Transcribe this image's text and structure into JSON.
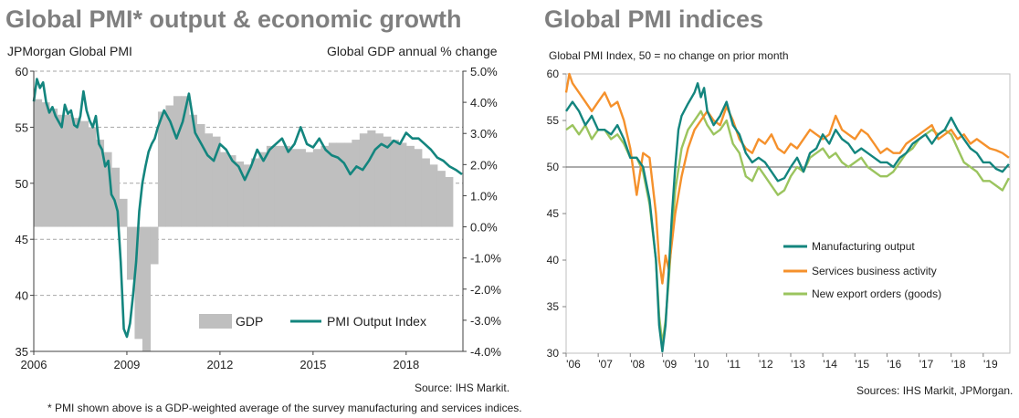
{
  "left_panel": {
    "title": "Global PMI* output & economic growth",
    "left_axis_title": "JPMorgan Global PMI",
    "right_axis_title": "Global  GDP annual % change",
    "source": "Source: IHS Markit.",
    "footnote": "* PMI shown above is a GDP-weighted average of the survey manufacturing and services indices."
  },
  "right_panel": {
    "title": "Global PMI indices",
    "subtitle": "Global PMI Index, 50 = no change on prior month",
    "source": "Sources: IHS Markit, JPMorgan."
  },
  "colors": {
    "teal": "#13857e",
    "orange": "#f5912c",
    "green": "#9bc45e",
    "gdp_gray": "#bfbfbf",
    "grid": "#a6a6a6"
  },
  "chart_data": [
    {
      "type": "bar",
      "legend_position": "bottom-right",
      "x_ticks": [
        "2006",
        "2009",
        "2012",
        "2015",
        "2018"
      ],
      "x_range": [
        2006.0,
        2019.83
      ],
      "y_left": {
        "range": [
          35,
          60
        ],
        "ticks": [
          "35",
          "40",
          "45",
          "50",
          "55",
          "60"
        ]
      },
      "y_right": {
        "range": [
          -4,
          5
        ],
        "ticks": [
          "-4.0%",
          "-3.0%",
          "-2.0%",
          "-1.0%",
          "0.0%",
          "1.0%",
          "2.0%",
          "3.0%",
          "4.0%",
          "5.0%"
        ]
      },
      "series": [
        {
          "name": "GDP",
          "axis": "right",
          "step": 0.25,
          "x_start": 2006.0,
          "values": [
            4.1,
            4.0,
            3.8,
            3.6,
            3.6,
            3.5,
            3.4,
            3.2,
            2.8,
            2.4,
            1.9,
            0.9,
            -1.7,
            -3.6,
            -4.0,
            -1.2,
            3.7,
            3.9,
            4.2,
            4.2,
            3.6,
            3.3,
            3.0,
            2.9,
            2.4,
            2.3,
            2.1,
            2.0,
            2.2,
            2.4,
            2.6,
            2.6,
            2.6,
            2.5,
            2.5,
            2.4,
            2.5,
            2.6,
            2.7,
            2.7,
            2.7,
            2.8,
            3.0,
            3.1,
            3.0,
            2.9,
            2.8,
            2.7,
            2.6,
            2.5,
            2.2,
            2.0,
            1.8,
            1.6
          ]
        },
        {
          "name": "PMI Output Index",
          "axis": "left",
          "x": [
            2006.0,
            2006.1,
            2006.2,
            2006.3,
            2006.4,
            2006.5,
            2006.6,
            2006.7,
            2006.8,
            2006.9,
            2007.0,
            2007.1,
            2007.2,
            2007.3,
            2007.4,
            2007.5,
            2007.6,
            2007.7,
            2007.8,
            2007.9,
            2008.0,
            2008.1,
            2008.2,
            2008.3,
            2008.4,
            2008.5,
            2008.6,
            2008.7,
            2008.8,
            2008.9,
            2009.0,
            2009.1,
            2009.2,
            2009.3,
            2009.4,
            2009.5,
            2009.6,
            2009.7,
            2009.8,
            2009.9,
            2010.0,
            2010.2,
            2010.4,
            2010.6,
            2010.8,
            2011.0,
            2011.2,
            2011.4,
            2011.6,
            2011.8,
            2012.0,
            2012.2,
            2012.4,
            2012.6,
            2012.8,
            2013.0,
            2013.2,
            2013.4,
            2013.6,
            2013.8,
            2014.0,
            2014.2,
            2014.4,
            2014.6,
            2014.8,
            2015.0,
            2015.2,
            2015.4,
            2015.6,
            2015.8,
            2016.0,
            2016.2,
            2016.4,
            2016.6,
            2016.8,
            2017.0,
            2017.2,
            2017.4,
            2017.6,
            2017.8,
            2018.0,
            2018.2,
            2018.4,
            2018.6,
            2018.8,
            2019.0,
            2019.2,
            2019.4,
            2019.6,
            2019.8
          ],
          "values": [
            57.3,
            59.3,
            58.5,
            59.0,
            57.2,
            56.3,
            56.8,
            56.0,
            55.5,
            55.0,
            57.0,
            56.2,
            56.5,
            55.2,
            55.0,
            56.0,
            58.2,
            56.5,
            55.6,
            55.0,
            56.0,
            53.5,
            53.0,
            51.5,
            52.0,
            49.0,
            48.5,
            47.5,
            43.0,
            37.0,
            36.3,
            37.5,
            40.0,
            43.0,
            47.5,
            50.0,
            51.5,
            52.8,
            53.5,
            54.0,
            55.0,
            56.5,
            55.5,
            54.0,
            55.5,
            58.0,
            54.5,
            53.5,
            52.5,
            52.0,
            53.5,
            53.0,
            52.0,
            51.5,
            50.3,
            51.5,
            53.0,
            52.0,
            53.0,
            53.5,
            54.0,
            52.8,
            53.5,
            55.0,
            53.5,
            53.2,
            54.0,
            53.0,
            52.5,
            52.3,
            51.8,
            50.8,
            51.5,
            51.2,
            52.0,
            53.0,
            53.5,
            53.2,
            53.8,
            53.5,
            54.5,
            54.0,
            54.0,
            53.5,
            53.0,
            52.3,
            52.0,
            51.5,
            51.2,
            50.8
          ]
        }
      ]
    },
    {
      "type": "line",
      "legend_position": "bottom-center",
      "x_ticks": [
        "'06",
        "'07",
        "'08",
        "'09",
        "'10",
        "'11",
        "'12",
        "'13",
        "'14",
        "'15",
        "'16",
        "'17",
        "'18",
        "'19"
      ],
      "x_range": [
        2006.0,
        2019.83
      ],
      "y_range": [
        30,
        60
      ],
      "y_ticks": [
        "30",
        "35",
        "40",
        "45",
        "50",
        "55",
        "60"
      ],
      "series": [
        {
          "name": "Manufacturing output",
          "x": [
            2006.0,
            2006.2,
            2006.4,
            2006.6,
            2006.8,
            2007.0,
            2007.2,
            2007.4,
            2007.6,
            2007.8,
            2008.0,
            2008.2,
            2008.4,
            2008.6,
            2008.8,
            2008.9,
            2009.0,
            2009.1,
            2009.2,
            2009.3,
            2009.4,
            2009.5,
            2009.6,
            2009.8,
            2010.0,
            2010.1,
            2010.2,
            2010.3,
            2010.4,
            2010.6,
            2010.8,
            2011.0,
            2011.2,
            2011.4,
            2011.6,
            2011.8,
            2012.0,
            2012.2,
            2012.4,
            2012.6,
            2012.8,
            2013.0,
            2013.2,
            2013.4,
            2013.6,
            2013.8,
            2014.0,
            2014.2,
            2014.4,
            2014.6,
            2014.8,
            2015.0,
            2015.2,
            2015.4,
            2015.6,
            2015.8,
            2016.0,
            2016.2,
            2016.4,
            2016.6,
            2016.8,
            2017.0,
            2017.2,
            2017.4,
            2017.6,
            2017.8,
            2018.0,
            2018.2,
            2018.4,
            2018.6,
            2018.8,
            2019.0,
            2019.2,
            2019.4,
            2019.6,
            2019.8
          ],
          "values": [
            56.0,
            57.0,
            56.0,
            54.5,
            55.5,
            54.0,
            54.0,
            53.5,
            54.5,
            53.0,
            51.0,
            51.0,
            50.0,
            46.5,
            40.0,
            33.0,
            30.2,
            33.0,
            39.0,
            45.0,
            50.0,
            54.0,
            55.5,
            56.8,
            58.0,
            59.0,
            57.5,
            58.5,
            56.0,
            54.5,
            55.5,
            57.0,
            54.5,
            53.5,
            51.5,
            50.5,
            51.0,
            50.5,
            49.5,
            48.5,
            48.8,
            50.0,
            51.0,
            49.5,
            51.5,
            52.0,
            53.5,
            52.5,
            54.0,
            53.0,
            52.5,
            51.5,
            52.0,
            51.5,
            51.0,
            50.5,
            50.5,
            50.0,
            51.0,
            51.5,
            52.5,
            53.0,
            53.5,
            52.5,
            53.5,
            54.0,
            55.3,
            54.0,
            53.0,
            52.0,
            51.5,
            50.5,
            50.5,
            49.8,
            49.5,
            50.3
          ]
        },
        {
          "name": "Services business activity",
          "x": [
            2006.0,
            2006.1,
            2006.2,
            2006.4,
            2006.6,
            2006.8,
            2007.0,
            2007.2,
            2007.4,
            2007.6,
            2007.8,
            2008.0,
            2008.2,
            2008.4,
            2008.6,
            2008.8,
            2008.9,
            2009.0,
            2009.1,
            2009.2,
            2009.4,
            2009.6,
            2009.8,
            2010.0,
            2010.2,
            2010.4,
            2010.6,
            2010.8,
            2011.0,
            2011.2,
            2011.4,
            2011.6,
            2011.8,
            2012.0,
            2012.2,
            2012.4,
            2012.6,
            2012.8,
            2013.0,
            2013.2,
            2013.4,
            2013.6,
            2013.8,
            2014.0,
            2014.2,
            2014.4,
            2014.6,
            2014.8,
            2015.0,
            2015.2,
            2015.4,
            2015.6,
            2015.8,
            2016.0,
            2016.2,
            2016.4,
            2016.6,
            2016.8,
            2017.0,
            2017.2,
            2017.4,
            2017.6,
            2017.8,
            2018.0,
            2018.2,
            2018.4,
            2018.6,
            2018.8,
            2019.0,
            2019.2,
            2019.4,
            2019.6,
            2019.8
          ],
          "values": [
            58.0,
            60.0,
            59.0,
            58.0,
            57.0,
            56.0,
            57.0,
            58.0,
            56.5,
            57.0,
            55.0,
            52.0,
            47.0,
            51.5,
            51.0,
            45.0,
            40.0,
            37.5,
            40.5,
            39.0,
            45.0,
            49.0,
            52.0,
            54.0,
            55.0,
            56.0,
            55.0,
            54.5,
            56.5,
            55.0,
            53.0,
            52.0,
            51.5,
            53.0,
            52.5,
            53.5,
            52.0,
            51.5,
            52.5,
            52.0,
            53.0,
            54.0,
            53.5,
            53.0,
            53.5,
            55.5,
            54.0,
            53.5,
            53.0,
            54.0,
            53.5,
            52.5,
            51.5,
            52.0,
            51.5,
            51.5,
            52.5,
            53.0,
            53.5,
            54.0,
            54.5,
            53.0,
            53.5,
            54.0,
            53.0,
            53.5,
            52.5,
            53.0,
            52.5,
            52.0,
            51.8,
            51.5,
            51.0
          ]
        },
        {
          "name": "New export orders (goods)",
          "x": [
            2006.0,
            2006.2,
            2006.4,
            2006.6,
            2006.8,
            2007.0,
            2007.2,
            2007.4,
            2007.6,
            2007.8,
            2008.0,
            2008.2,
            2008.4,
            2008.6,
            2008.8,
            2008.9,
            2009.0,
            2009.1,
            2009.2,
            2009.3,
            2009.4,
            2009.6,
            2009.8,
            2010.0,
            2010.2,
            2010.4,
            2010.6,
            2010.8,
            2011.0,
            2011.2,
            2011.4,
            2011.6,
            2011.8,
            2012.0,
            2012.2,
            2012.4,
            2012.6,
            2012.8,
            2013.0,
            2013.2,
            2013.4,
            2013.6,
            2013.8,
            2014.0,
            2014.2,
            2014.4,
            2014.6,
            2014.8,
            2015.0,
            2015.2,
            2015.4,
            2015.6,
            2015.8,
            2016.0,
            2016.2,
            2016.4,
            2016.6,
            2016.8,
            2017.0,
            2017.2,
            2017.4,
            2017.6,
            2017.8,
            2018.0,
            2018.2,
            2018.4,
            2018.6,
            2018.8,
            2019.0,
            2019.2,
            2019.4,
            2019.6,
            2019.8
          ],
          "values": [
            54.0,
            54.5,
            53.5,
            54.5,
            53.0,
            54.0,
            54.0,
            53.0,
            53.5,
            52.5,
            51.0,
            51.0,
            49.5,
            46.0,
            40.0,
            34.0,
            31.0,
            33.5,
            38.0,
            43.0,
            47.5,
            52.0,
            54.0,
            55.0,
            56.0,
            54.5,
            53.5,
            54.0,
            55.0,
            52.5,
            51.5,
            49.0,
            48.5,
            50.0,
            49.0,
            48.0,
            47.0,
            47.5,
            49.0,
            50.0,
            49.5,
            51.0,
            51.5,
            52.0,
            51.0,
            51.5,
            50.5,
            50.0,
            50.5,
            51.0,
            50.0,
            49.5,
            49.0,
            49.0,
            49.5,
            50.5,
            51.5,
            52.0,
            53.0,
            53.5,
            54.0,
            53.5,
            54.0,
            53.5,
            52.0,
            50.5,
            50.0,
            49.5,
            48.5,
            48.5,
            48.0,
            47.5,
            48.8
          ]
        }
      ]
    }
  ]
}
